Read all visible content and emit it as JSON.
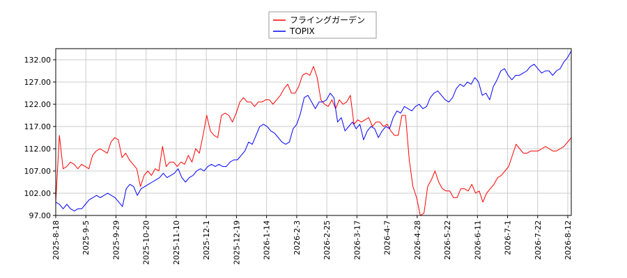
{
  "chart_data": {
    "type": "line",
    "title": "",
    "xlabel": "",
    "ylabel": "",
    "ylim": [
      97.0,
      134.5
    ],
    "yticks": [
      "97.00",
      "102.00",
      "107.00",
      "112.00",
      "117.00",
      "122.00",
      "127.00",
      "132.00"
    ],
    "xticks": [
      "2025-8-18",
      "2025-9-5",
      "2025-9-29",
      "2025-10-20",
      "2025-11-10",
      "2025-12-1",
      "2025-12-19",
      "2026-1-14",
      "2026-2-3",
      "2026-2-25",
      "2026-3-17",
      "2026-4-7",
      "2026-4-28",
      "2026-5-22",
      "2026-6-11",
      "2026-7-1",
      "2026-7-22",
      "2026-8-12"
    ],
    "grid": true,
    "legend_position": "top-center",
    "series": [
      {
        "name": "フライングガーデン",
        "color": "#ff0000",
        "values": [
          100.0,
          115.0,
          107.5,
          108.0,
          109.0,
          108.5,
          107.5,
          108.5,
          108.0,
          107.5,
          110.5,
          111.5,
          112.0,
          111.5,
          111.0,
          113.5,
          114.5,
          114.0,
          110.0,
          111.0,
          109.5,
          108.5,
          107.5,
          103.5,
          106.0,
          107.0,
          106.0,
          107.5,
          107.0,
          112.5,
          108.0,
          109.0,
          109.0,
          108.0,
          109.0,
          108.5,
          110.5,
          109.0,
          112.0,
          111.0,
          115.0,
          119.5,
          116.0,
          115.0,
          114.5,
          119.5,
          120.0,
          119.5,
          118.0,
          120.0,
          122.5,
          123.5,
          122.5,
          122.5,
          121.5,
          122.5,
          122.5,
          123.0,
          123.0,
          122.0,
          123.0,
          124.0,
          125.5,
          126.5,
          124.5,
          124.5,
          126.0,
          128.5,
          129.0,
          128.5,
          130.5,
          128.0,
          123.0,
          122.0,
          121.5,
          123.0,
          121.0,
          123.0,
          122.0,
          122.5,
          124.0,
          117.5,
          118.5,
          118.0,
          118.5,
          119.0,
          117.0,
          118.0,
          118.0,
          117.0,
          117.5,
          116.0,
          115.0,
          115.0,
          119.5,
          119.5,
          109.5,
          103.5,
          101.0,
          97.0,
          97.5,
          103.5,
          105.0,
          107.0,
          104.5,
          103.0,
          102.5,
          102.5,
          101.0,
          101.0,
          103.0,
          103.0,
          102.5,
          104.0,
          102.0,
          102.5,
          100.0,
          102.0,
          103.0,
          104.0,
          105.5,
          106.0,
          107.0,
          108.0,
          110.5,
          113.0,
          112.0,
          111.0,
          111.0,
          111.5,
          111.5,
          111.5,
          112.0,
          112.5,
          112.0,
          111.5,
          111.5,
          112.0,
          112.5,
          113.5,
          114.5
        ]
      },
      {
        "name": "TOPIX",
        "color": "#0000ff",
        "values": [
          100.0,
          99.5,
          98.5,
          99.5,
          98.5,
          98.0,
          98.5,
          98.5,
          99.5,
          100.5,
          101.0,
          101.5,
          101.0,
          101.5,
          102.0,
          101.5,
          101.0,
          100.0,
          99.0,
          103.0,
          104.0,
          103.5,
          101.5,
          103.0,
          103.5,
          104.0,
          104.5,
          105.0,
          105.5,
          106.5,
          105.5,
          106.0,
          106.5,
          107.5,
          105.5,
          104.5,
          105.5,
          106.0,
          107.0,
          107.5,
          107.0,
          108.0,
          108.5,
          108.0,
          108.5,
          108.0,
          108.0,
          109.0,
          109.5,
          109.5,
          110.5,
          111.5,
          113.5,
          113.0,
          115.0,
          117.0,
          117.5,
          117.0,
          116.0,
          115.5,
          114.5,
          113.5,
          113.0,
          113.5,
          116.5,
          117.5,
          120.0,
          123.5,
          124.0,
          122.5,
          121.0,
          122.5,
          122.5,
          123.0,
          124.5,
          123.5,
          118.0,
          119.0,
          116.0,
          117.0,
          118.0,
          116.5,
          117.5,
          114.0,
          116.0,
          117.0,
          116.5,
          114.5,
          116.0,
          117.0,
          116.5,
          119.0,
          120.5,
          120.0,
          121.5,
          121.0,
          120.5,
          121.5,
          122.0,
          121.0,
          121.5,
          123.5,
          124.5,
          125.0,
          124.0,
          123.0,
          122.5,
          123.5,
          125.5,
          126.5,
          126.0,
          127.0,
          126.5,
          128.0,
          127.0,
          124.0,
          124.5,
          123.0,
          126.0,
          127.5,
          129.5,
          130.0,
          128.5,
          127.5,
          128.5,
          128.5,
          129.0,
          129.5,
          130.5,
          131.0,
          130.0,
          129.0,
          129.5,
          129.5,
          128.5,
          129.5,
          130.0,
          131.5,
          132.5,
          134.0
        ]
      }
    ]
  }
}
